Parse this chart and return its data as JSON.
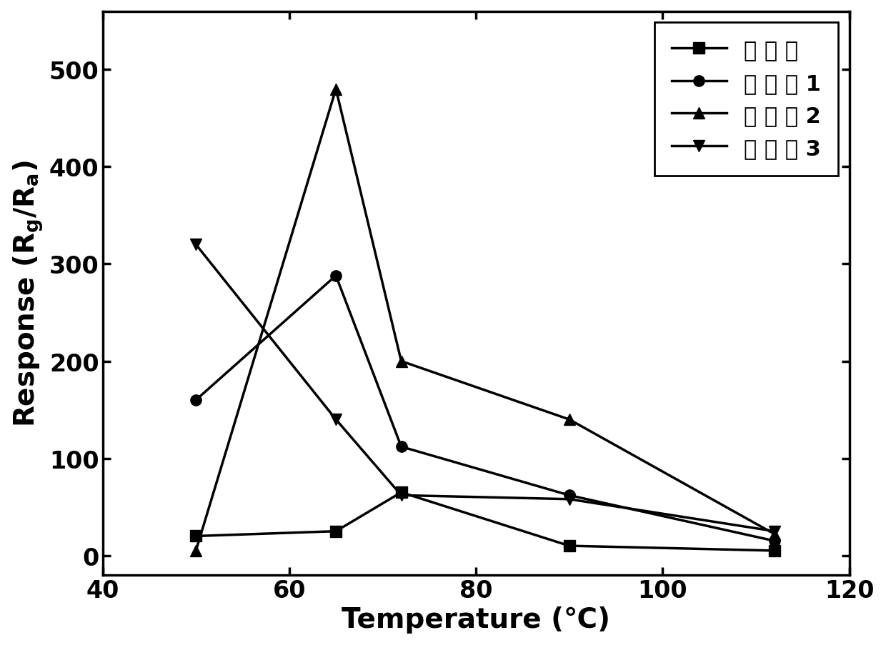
{
  "series": [
    {
      "label": "对 比 例",
      "x": [
        50,
        65,
        72,
        90,
        112
      ],
      "y": [
        20,
        25,
        65,
        10,
        5
      ],
      "marker": "s",
      "color": "#000000",
      "linewidth": 2.5,
      "markersize": 11
    },
    {
      "label": "实 施 例 1",
      "x": [
        50,
        65,
        72,
        90,
        112
      ],
      "y": [
        160,
        288,
        112,
        62,
        15
      ],
      "marker": "o",
      "color": "#000000",
      "linewidth": 2.5,
      "markersize": 11
    },
    {
      "label": "实 施 例 2",
      "x": [
        50,
        65,
        72,
        90,
        112
      ],
      "y": [
        5,
        480,
        200,
        140,
        22
      ],
      "marker": "^",
      "color": "#000000",
      "linewidth": 2.5,
      "markersize": 11
    },
    {
      "label": "实 施 例 3",
      "x": [
        50,
        65,
        72,
        90,
        112
      ],
      "y": [
        320,
        140,
        62,
        58,
        25
      ],
      "marker": "v",
      "color": "#000000",
      "linewidth": 2.5,
      "markersize": 11
    }
  ],
  "xlabel": "Temperature (℃)",
  "xlim": [
    40,
    120
  ],
  "ylim": [
    -20,
    560
  ],
  "xticks": [
    40,
    60,
    80,
    100,
    120
  ],
  "yticks": [
    0,
    100,
    200,
    300,
    400,
    500
  ],
  "background_color": "#ffffff",
  "tick_labelsize": 24,
  "label_fontsize": 28,
  "legend_fontsize": 22,
  "linewidth": 2.5
}
